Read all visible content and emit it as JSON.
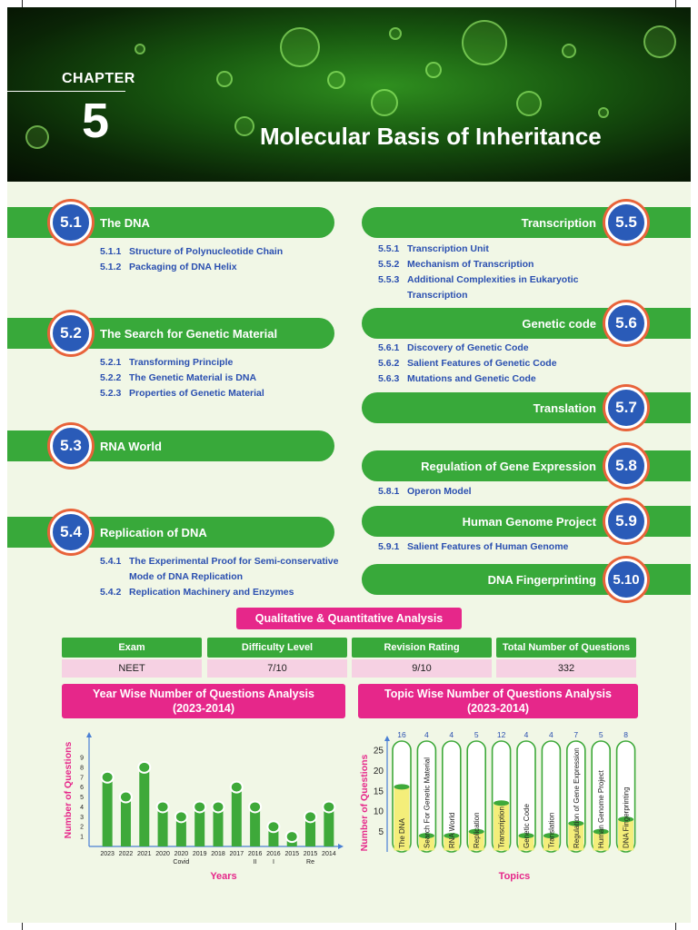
{
  "header": {
    "chapter_label": "CHAPTER",
    "chapter_number": "5",
    "title": "Molecular Basis of Inheritance"
  },
  "topics_left": [
    {
      "num": "5.1",
      "title": "The DNA",
      "subs": [
        {
          "n": "5.1.1",
          "t": "Structure of Polynucleotide Chain"
        },
        {
          "n": "5.1.2",
          "t": "Packaging of DNA Helix"
        }
      ]
    },
    {
      "num": "5.2",
      "title": "The Search for Genetic Material",
      "subs": [
        {
          "n": "5.2.1",
          "t": "Transforming Principle"
        },
        {
          "n": "5.2.2",
          "t": "The Genetic Material is DNA"
        },
        {
          "n": "5.2.3",
          "t": "Properties of Genetic Material"
        }
      ]
    },
    {
      "num": "5.3",
      "title": "RNA World",
      "subs": []
    },
    {
      "num": "5.4",
      "title": "Replication of DNA",
      "subs": [
        {
          "n": "5.4.1",
          "t": "The Experimental Proof for Semi-conservative",
          "t2": "Mode of DNA Replication"
        },
        {
          "n": "5.4.2",
          "t": "Replication Machinery and Enzymes"
        }
      ]
    }
  ],
  "topics_right": [
    {
      "num": "5.5",
      "title": "Transcription",
      "subs": [
        {
          "n": "5.5.1",
          "t": "Transcription Unit"
        },
        {
          "n": "5.5.2",
          "t": "Mechanism of Transcription"
        },
        {
          "n": "5.5.3",
          "t": "Additional Complexities in Eukaryotic",
          "t2": "Transcription"
        }
      ]
    },
    {
      "num": "5.6",
      "title": "Genetic code",
      "subs": [
        {
          "n": "5.6.1",
          "t": "Discovery of Genetic Code"
        },
        {
          "n": "5.6.2",
          "t": "Salient Features of Genetic Code"
        },
        {
          "n": "5.6.3",
          "t": "Mutations and Genetic Code"
        }
      ]
    },
    {
      "num": "5.7",
      "title": "Translation",
      "subs": []
    },
    {
      "num": "5.8",
      "title": "Regulation of Gene Expression",
      "subs": [
        {
          "n": "5.8.1",
          "t": "Operon Model"
        }
      ]
    },
    {
      "num": "5.9",
      "title": "Human Genome Project",
      "subs": [
        {
          "n": "5.9.1",
          "t": "Salient Features of Human Genome"
        }
      ]
    },
    {
      "num": "5.10",
      "title": "DNA Fingerprinting",
      "subs": []
    }
  ],
  "analysis": {
    "title": "Qualitative & Quantitative Analysis",
    "headers": [
      "Exam",
      "Difficulty Level",
      "Revision Rating",
      "Total Number of Questions"
    ],
    "values": [
      "NEET",
      "7/10",
      "9/10",
      "332"
    ]
  },
  "year_chart_title": {
    "line1": "Year Wise Number of Questions Analysis",
    "line2": "(2023-2014)"
  },
  "topic_chart_title": {
    "line1": "Topic Wise Number of Questions Analysis",
    "line2": "(2023-2014)"
  },
  "chart_data": [
    {
      "type": "bar",
      "categories": [
        "2023",
        "2022",
        "2021",
        "2020",
        "2020",
        "2019",
        "2018",
        "2017",
        "2016",
        "2016",
        "2015",
        "2015",
        "2014"
      ],
      "sublabels": [
        "",
        "",
        "",
        "",
        "Covid",
        "",
        "",
        "",
        "II",
        "I",
        "",
        "Re",
        ""
      ],
      "values": [
        7,
        5,
        8,
        4,
        3,
        4,
        4,
        6,
        4,
        2,
        1,
        3,
        4
      ],
      "xlabel": "Years",
      "ylabel": "Number of Questions",
      "yticks": [
        1,
        2,
        3,
        4,
        5,
        6,
        7,
        8,
        9
      ],
      "ylim": [
        0,
        9.5
      ],
      "color": "#3ea93a"
    },
    {
      "type": "bar",
      "categories": [
        "The DNA",
        "Search For Genetic Material",
        "RNA World",
        "Replication",
        "Transcription",
        "Genetic Code",
        "Translation",
        "Regulation of Gene Expression",
        "Human Genome Project",
        "DNA Fingerprinting"
      ],
      "values": [
        16,
        4,
        4,
        5,
        12,
        4,
        4,
        7,
        5,
        8
      ],
      "xlabel": "Topics",
      "ylabel": "Number of Questions",
      "yticks": [
        5,
        10,
        15,
        20,
        25
      ],
      "ylim": [
        0,
        27
      ],
      "color": "#f4ee7a"
    }
  ]
}
